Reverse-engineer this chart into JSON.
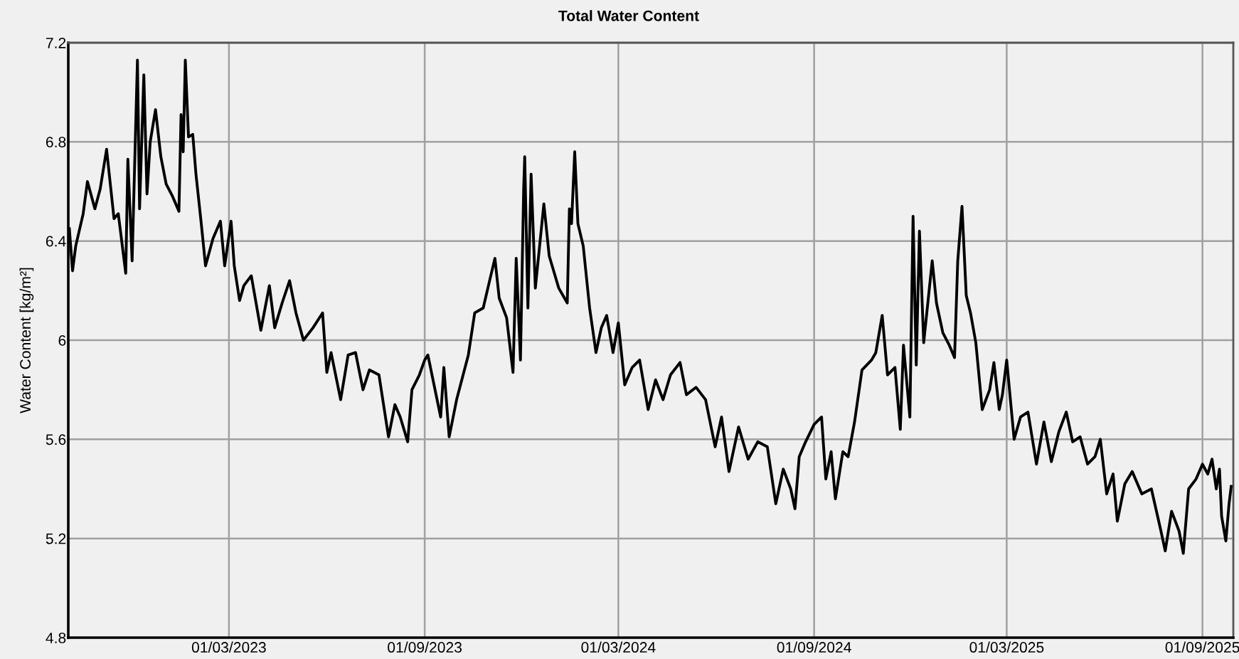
{
  "chart_data": {
    "type": "line",
    "title": "Total Water Content",
    "ylabel": "Water Content [kg/m²]",
    "x": [
      "2022-10-02",
      "2022-10-05",
      "2022-10-08",
      "2022-10-15",
      "2022-10-19",
      "2022-10-26",
      "2022-10-31",
      "2022-11-06",
      "2022-11-13",
      "2022-11-17",
      "2022-11-24",
      "2022-11-26",
      "2022-11-30",
      "2022-12-05",
      "2022-12-07",
      "2022-12-11",
      "2022-12-14",
      "2022-12-17",
      "2022-12-22",
      "2022-12-27",
      "2023-01-01",
      "2023-01-07",
      "2023-01-13",
      "2023-01-15",
      "2023-01-17",
      "2023-01-19",
      "2023-01-22",
      "2023-01-26",
      "2023-01-29",
      "2023-02-03",
      "2023-02-07",
      "2023-02-14",
      "2023-02-21",
      "2023-02-25",
      "2023-03-03",
      "2023-03-06",
      "2023-03-11",
      "2023-03-15",
      "2023-03-22",
      "2023-03-31",
      "2023-04-08",
      "2023-04-13",
      "2023-04-20",
      "2023-04-27",
      "2023-05-03",
      "2023-05-10",
      "2023-05-19",
      "2023-05-28",
      "2023-06-01",
      "2023-06-05",
      "2023-06-14",
      "2023-06-21",
      "2023-06-28",
      "2023-07-05",
      "2023-07-11",
      "2023-07-20",
      "2023-07-29",
      "2023-08-04",
      "2023-08-09",
      "2023-08-16",
      "2023-08-20",
      "2023-08-27",
      "2023-09-01",
      "2023-09-04",
      "2023-09-16",
      "2023-09-19",
      "2023-09-24",
      "2023-10-01",
      "2023-10-12",
      "2023-10-18",
      "2023-10-26",
      "2023-11-01",
      "2023-11-06",
      "2023-11-10",
      "2023-11-17",
      "2023-11-23",
      "2023-11-26",
      "2023-11-30",
      "2023-12-03",
      "2023-12-04",
      "2023-12-07",
      "2023-12-10",
      "2023-12-14",
      "2023-12-18",
      "2023-12-22",
      "2023-12-27",
      "2024-01-05",
      "2024-01-13",
      "2024-01-15",
      "2024-01-17",
      "2024-01-20",
      "2024-01-23",
      "2024-01-28",
      "2024-02-03",
      "2024-02-09",
      "2024-02-14",
      "2024-02-19",
      "2024-02-25",
      "2024-03-01",
      "2024-03-07",
      "2024-03-14",
      "2024-03-21",
      "2024-03-29",
      "2024-04-05",
      "2024-04-12",
      "2024-04-19",
      "2024-04-28",
      "2024-05-04",
      "2024-05-13",
      "2024-05-22",
      "2024-05-31",
      "2024-06-06",
      "2024-06-13",
      "2024-06-22",
      "2024-07-01",
      "2024-07-10",
      "2024-07-19",
      "2024-07-27",
      "2024-08-03",
      "2024-08-10",
      "2024-08-14",
      "2024-08-18",
      "2024-08-24",
      "2024-09-01",
      "2024-09-08",
      "2024-09-12",
      "2024-09-17",
      "2024-09-21",
      "2024-09-28",
      "2024-10-03",
      "2024-10-09",
      "2024-10-16",
      "2024-10-25",
      "2024-10-29",
      "2024-11-04",
      "2024-11-09",
      "2024-11-16",
      "2024-11-21",
      "2024-11-24",
      "2024-11-30",
      "2024-12-03",
      "2024-12-06",
      "2024-12-09",
      "2024-12-13",
      "2024-12-21",
      "2024-12-25",
      "2024-12-31",
      "2025-01-06",
      "2025-01-11",
      "2025-01-14",
      "2025-01-18",
      "2025-01-22",
      "2025-01-26",
      "2025-01-31",
      "2025-02-06",
      "2025-02-13",
      "2025-02-17",
      "2025-02-22",
      "2025-02-25",
      "2025-03-01",
      "2025-03-08",
      "2025-03-14",
      "2025-03-21",
      "2025-03-29",
      "2025-04-05",
      "2025-04-12",
      "2025-04-19",
      "2025-04-26",
      "2025-05-02",
      "2025-05-09",
      "2025-05-16",
      "2025-05-23",
      "2025-05-28",
      "2025-06-03",
      "2025-06-09",
      "2025-06-13",
      "2025-06-20",
      "2025-06-27",
      "2025-07-06",
      "2025-07-15",
      "2025-07-24",
      "2025-07-28",
      "2025-08-03",
      "2025-08-10",
      "2025-08-14",
      "2025-08-19",
      "2025-08-26",
      "2025-09-01",
      "2025-09-06",
      "2025-09-10",
      "2025-09-14",
      "2025-09-17",
      "2025-09-19",
      "2025-09-23",
      "2025-09-26",
      "2025-09-28"
    ],
    "series": [
      {
        "color": "#000000",
        "values": [
          6.45,
          6.28,
          6.38,
          6.51,
          6.64,
          6.53,
          6.61,
          6.77,
          6.49,
          6.51,
          6.27,
          6.73,
          6.32,
          7.13,
          6.53,
          7.07,
          6.59,
          6.8,
          6.93,
          6.74,
          6.63,
          6.58,
          6.52,
          6.91,
          6.76,
          7.13,
          6.82,
          6.83,
          6.67,
          6.47,
          6.3,
          6.41,
          6.48,
          6.3,
          6.48,
          6.3,
          6.16,
          6.22,
          6.26,
          6.04,
          6.22,
          6.05,
          6.15,
          6.24,
          6.11,
          6.0,
          6.05,
          6.11,
          5.87,
          5.95,
          5.76,
          5.94,
          5.95,
          5.8,
          5.88,
          5.86,
          5.61,
          5.74,
          5.69,
          5.59,
          5.8,
          5.86,
          5.92,
          5.94,
          5.69,
          5.89,
          5.61,
          5.76,
          5.94,
          6.11,
          6.13,
          6.24,
          6.33,
          6.17,
          6.09,
          5.87,
          6.33,
          5.92,
          6.61,
          6.74,
          6.13,
          6.67,
          6.21,
          6.38,
          6.55,
          6.34,
          6.21,
          6.15,
          6.53,
          6.47,
          6.76,
          6.47,
          6.38,
          6.13,
          5.95,
          6.05,
          6.1,
          5.95,
          6.07,
          5.82,
          5.89,
          5.92,
          5.72,
          5.84,
          5.76,
          5.86,
          5.91,
          5.78,
          5.81,
          5.76,
          5.57,
          5.69,
          5.47,
          5.65,
          5.52,
          5.59,
          5.57,
          5.34,
          5.48,
          5.4,
          5.32,
          5.53,
          5.59,
          5.66,
          5.69,
          5.44,
          5.55,
          5.36,
          5.55,
          5.53,
          5.67,
          5.88,
          5.92,
          5.95,
          6.1,
          5.86,
          5.89,
          5.64,
          5.98,
          5.69,
          6.5,
          5.9,
          6.44,
          5.99,
          6.32,
          6.15,
          6.03,
          5.98,
          5.93,
          6.32,
          6.54,
          6.18,
          6.11,
          5.99,
          5.72,
          5.8,
          5.91,
          5.72,
          5.78,
          5.92,
          5.6,
          5.69,
          5.71,
          5.5,
          5.67,
          5.51,
          5.63,
          5.71,
          5.59,
          5.61,
          5.5,
          5.53,
          5.6,
          5.38,
          5.46,
          5.27,
          5.42,
          5.47,
          5.38,
          5.4,
          5.23,
          5.15,
          5.31,
          5.23,
          5.14,
          5.4,
          5.44,
          5.5,
          5.46,
          5.52,
          5.4,
          5.48,
          5.29,
          5.19,
          5.34,
          5.41
        ]
      }
    ],
    "xlim": [
      "2022-10-01",
      "2025-09-30"
    ],
    "xticks": [
      {
        "value": "2023-03-01",
        "label": "01/03/2023"
      },
      {
        "value": "2023-09-01",
        "label": "01/09/2023"
      },
      {
        "value": "2024-03-01",
        "label": "01/03/2024"
      },
      {
        "value": "2024-09-01",
        "label": "01/09/2024"
      },
      {
        "value": "2025-03-01",
        "label": "01/03/2025"
      },
      {
        "value": "2025-09-01",
        "label": "01/09/2025"
      }
    ],
    "ylim": [
      4.8,
      7.2
    ],
    "yticks": [
      4.8,
      5.2,
      5.6,
      6,
      6.4,
      6.8,
      7.2
    ],
    "grid": true
  }
}
